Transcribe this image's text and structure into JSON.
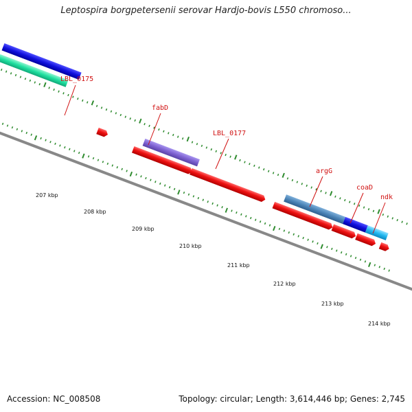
{
  "title": "Leptospira borgpetersenii serovar Hardjo-bovis L550 chromoso...",
  "footer": {
    "accession": "Accession: NC_008508",
    "summary": "Topology: circular; Length: 3,614,446 bp; Genes: 2,745"
  },
  "colors": {
    "backbone": "#888888",
    "tick": "#2e8b2e",
    "label": "#d01010",
    "red": "#ee1111",
    "purple": "#7e62d2",
    "steelblue": "#4c85b8",
    "blue": "#1010dd",
    "lightblue": "#22b8f0",
    "green": "#1fe0a0"
  },
  "ruler": {
    "labels": [
      "207 kbp",
      "208 kbp",
      "209 kbp",
      "210 kbp",
      "211 kbp",
      "212 kbp",
      "213 kbp",
      "214 kbp"
    ]
  },
  "gene_labels": [
    "LBL_0175",
    "fabD",
    "LBL_0177",
    "argG",
    "coaD",
    "ndk"
  ]
}
